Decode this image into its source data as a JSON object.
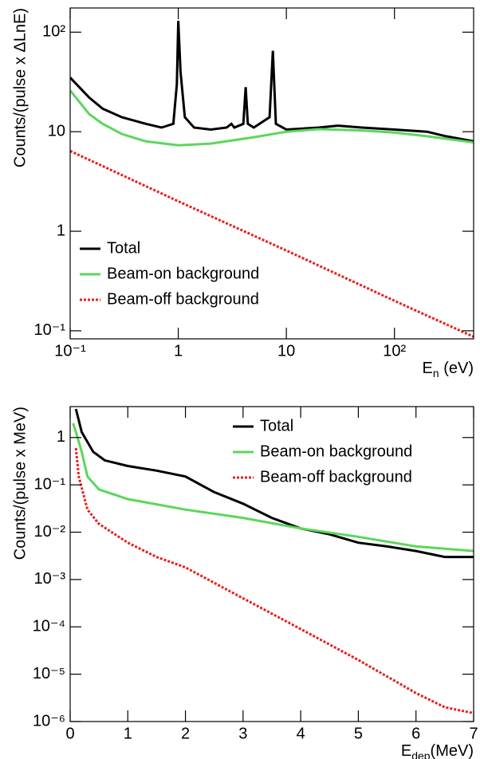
{
  "chart_data": [
    {
      "type": "line",
      "xlog": true,
      "ylog": true,
      "x_label": "E",
      "x_label_sub": "n",
      "x_label_unit": " (eV)",
      "y_label": "Counts/(pulse x ΔLnE)",
      "xlim": [
        0.1,
        540
      ],
      "ylim": [
        0.083,
        175
      ],
      "xticks": [
        {
          "value": 0.1,
          "label": "10⁻¹"
        },
        1,
        10,
        {
          "value": 100,
          "label": "10²"
        }
      ],
      "yticks": [
        {
          "value": 0.1,
          "label": "10⁻¹"
        },
        1,
        10,
        {
          "value": 100,
          "label": "10²"
        }
      ],
      "legend_position": "lower-left",
      "series": [
        {
          "name": "Total",
          "color": "#000000",
          "line_style": "solid",
          "x": [
            0.1,
            0.15,
            0.2,
            0.3,
            0.5,
            0.7,
            0.9,
            0.97,
            1.0,
            1.05,
            1.15,
            1.4,
            2,
            2.8,
            3.1,
            3.3,
            4.0,
            4.2,
            4.4,
            5,
            7.0,
            7.5,
            8,
            10,
            20,
            30,
            50,
            100,
            200,
            300,
            540
          ],
          "values": [
            35,
            22,
            17,
            14,
            12,
            11,
            12,
            30,
            130,
            40,
            14,
            11,
            10.5,
            11,
            12,
            11,
            12,
            28,
            12,
            11,
            14,
            65,
            12,
            10.5,
            11,
            11.5,
            11,
            10.5,
            10,
            9,
            8
          ]
        },
        {
          "name": "Beam-on background",
          "color": "#5cd65c",
          "line_style": "solid",
          "x": [
            0.1,
            0.15,
            0.2,
            0.3,
            0.5,
            1,
            2,
            5,
            10,
            20,
            50,
            100,
            200,
            540
          ],
          "values": [
            26,
            15,
            12,
            9.5,
            8,
            7.3,
            7.6,
            8.8,
            10,
            10.6,
            10.3,
            9.8,
            9,
            7.8
          ]
        },
        {
          "name": "Beam-off background",
          "color": "#e8201c",
          "line_style": "dotted",
          "x": [
            0.1,
            1,
            10,
            100,
            540
          ],
          "values": [
            6.4,
            2.0,
            0.64,
            0.2,
            0.087
          ]
        }
      ]
    },
    {
      "type": "line",
      "xlog": false,
      "ylog": true,
      "x_label": "E",
      "x_label_sub": "dep",
      "x_label_unit": "(MeV)",
      "y_label": "Counts/(pulse x MeV)",
      "xlim": [
        0,
        7
      ],
      "ylim": [
        1e-06,
        4.5
      ],
      "xticks": [
        0,
        1,
        2,
        3,
        4,
        5,
        6,
        7
      ],
      "yticks": [
        {
          "value": 1e-06,
          "label": "10⁻⁶"
        },
        {
          "value": 1e-05,
          "label": "10⁻⁵"
        },
        {
          "value": 0.0001,
          "label": "10⁻⁴"
        },
        {
          "value": 0.001,
          "label": "10⁻³"
        },
        {
          "value": 0.01,
          "label": "10⁻²"
        },
        {
          "value": 0.1,
          "label": "10⁻¹"
        },
        1
      ],
      "legend_position": "upper-right",
      "series": [
        {
          "name": "Total",
          "color": "#000000",
          "line_style": "solid",
          "x": [
            0.1,
            0.2,
            0.4,
            0.6,
            1,
            1.5,
            2,
            2.5,
            3,
            3.5,
            4,
            4.5,
            5,
            5.5,
            6,
            6.5,
            7
          ],
          "values": [
            4,
            1.3,
            0.5,
            0.33,
            0.25,
            0.2,
            0.15,
            0.07,
            0.04,
            0.02,
            0.012,
            0.009,
            0.006,
            0.005,
            0.004,
            0.003,
            0.003
          ]
        },
        {
          "name": "Beam-on background",
          "color": "#5cd65c",
          "line_style": "solid",
          "x": [
            0.05,
            0.1,
            0.2,
            0.3,
            0.5,
            1,
            2,
            3,
            4,
            5,
            6,
            7
          ],
          "values": [
            2,
            1.3,
            0.5,
            0.15,
            0.08,
            0.05,
            0.03,
            0.02,
            0.012,
            0.008,
            0.005,
            0.004
          ]
        },
        {
          "name": "Beam-off background",
          "color": "#e8201c",
          "line_style": "dotted",
          "x": [
            0.1,
            0.15,
            0.3,
            0.5,
            1,
            1.5,
            2,
            3,
            4,
            5,
            6,
            6.5,
            7
          ],
          "values": [
            0.6,
            0.15,
            0.03,
            0.015,
            0.006,
            0.003,
            0.0018,
            0.0004,
            9e-05,
            2e-05,
            4e-06,
            2e-06,
            1.5e-06
          ]
        }
      ]
    }
  ]
}
